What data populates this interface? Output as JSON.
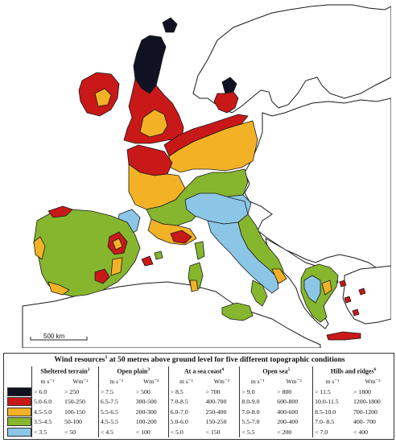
{
  "map": {
    "scale_label": "500 km",
    "colors": {
      "sea": "#ffffff",
      "land": "#ffffff",
      "coast": "#1a1a1a",
      "class1": "#111124",
      "class2": "#c81818",
      "class3": "#f3b226",
      "class4": "#86b62e",
      "class5": "#8cc6e6"
    }
  },
  "legend": {
    "title": "Wind resources",
    "title_sup": "1",
    "title_rest": " at 50 metres above ground level for five different topographic conditions",
    "groups": [
      {
        "name": "Sheltered terrain",
        "sup": "2",
        "u1": "m s⁻¹",
        "u2": "Wm⁻²",
        "rows": [
          [
            "> 6.0",
            "> 250"
          ],
          [
            "5.0-6.0",
            "150-250"
          ],
          [
            "4.5-5.0",
            "100-150"
          ],
          [
            "3.5-4.5",
            "50-100"
          ],
          [
            "< 3.5",
            "< 50"
          ]
        ]
      },
      {
        "name": "Open plain",
        "sup": "3",
        "u1": "m s⁻¹",
        "u2": "Wm⁻²",
        "rows": [
          [
            "> 7.5",
            "> 500"
          ],
          [
            "6.5-7.5",
            "300-500"
          ],
          [
            "5.5-6.5",
            "200-300"
          ],
          [
            "4.5-5.5",
            "100-200"
          ],
          [
            "< 4.5",
            "< 100"
          ]
        ]
      },
      {
        "name": "At a sea coast",
        "sup": "4",
        "u1": "m s⁻¹",
        "u2": "Wm⁻²",
        "rows": [
          [
            "> 8.5",
            "> 700"
          ],
          [
            "7.0-8.5",
            "400-700"
          ],
          [
            "6.0-7.0",
            "250-400"
          ],
          [
            "5.0-6.0",
            "150-250"
          ],
          [
            "< 5.0",
            "< 150"
          ]
        ]
      },
      {
        "name": "Open sea",
        "sup": "5",
        "u1": "m s⁻¹",
        "u2": "Wm⁻²",
        "rows": [
          [
            "> 9.0",
            "> 800"
          ],
          [
            "8.0-9.0",
            "600-800"
          ],
          [
            "7.0-8.0",
            "400-600"
          ],
          [
            "5.5-7.0",
            "200-400"
          ],
          [
            "< 5.5",
            "< 200"
          ]
        ]
      },
      {
        "name": "Hills and ridges",
        "sup": "6",
        "u1": "m s⁻¹",
        "u2": "Wm⁻²",
        "rows": [
          [
            "> 11.5",
            "> 1800"
          ],
          [
            "10.0-11.5",
            "1200-1800"
          ],
          [
            "8.5-10.0",
            "700-1200"
          ],
          [
            "7.0- 8.5",
            "400- 700"
          ],
          [
            "< 7.0",
            "< 400"
          ]
        ]
      }
    ]
  }
}
